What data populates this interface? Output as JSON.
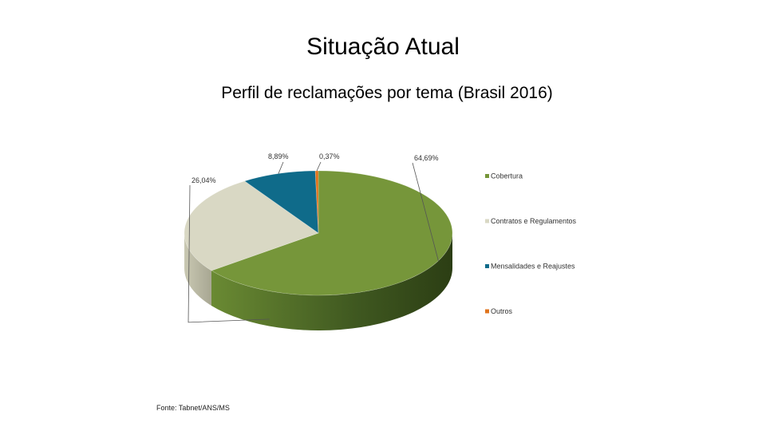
{
  "slide": {
    "title": "Situação Atual",
    "subtitle": "Perfil de reclamações por tema (Brasil  2016)",
    "footer": "Fonte: Tabnet/ANS/MS"
  },
  "chart_data": {
    "type": "pie",
    "style": "3d",
    "title": "Perfil de reclamações por tema (Brasil  2016)",
    "legend_position": "right",
    "slices": [
      {
        "label": "Cobertura",
        "value": 64.69,
        "display": "64,69%",
        "color": "#76963a"
      },
      {
        "label": "Contratos e Regulamentos",
        "value": 26.04,
        "display": "26,04%",
        "color": "#d9d8c4"
      },
      {
        "label": "Mensalidades e Reajustes",
        "value": 8.89,
        "display": "8,89%",
        "color": "#0f6b8a"
      },
      {
        "label": "Outros",
        "value": 0.37,
        "display": "0,37%",
        "color": "#e0741c"
      }
    ]
  }
}
